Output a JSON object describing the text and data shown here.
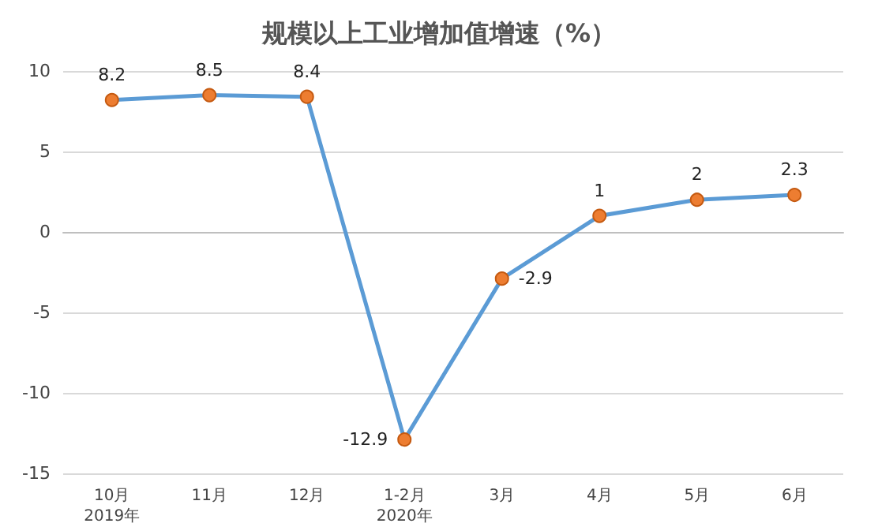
{
  "chart_data": {
    "type": "line",
    "title": "规模以上工业增加值增速（%）",
    "categories": [
      "10月\n2019年",
      "11月",
      "12月",
      "1-2月\n2020年",
      "3月",
      "4月",
      "5月",
      "6月"
    ],
    "values": [
      8.2,
      8.5,
      8.4,
      -12.9,
      -2.9,
      1,
      2,
      2.3
    ],
    "color": "#5b9bd5",
    "colors": [
      "#ed7d31",
      "#ed7d31",
      "#ed7d31",
      "#ed7d31",
      "#ed7d31",
      "#ed7d31",
      "#ed7d31",
      "#ed7d31"
    ],
    "ylim": [
      -15,
      10
    ],
    "yticks": [
      -15,
      -10,
      -5,
      0,
      5,
      10
    ],
    "grid": "y",
    "marker": "circle",
    "data_labels": true
  }
}
